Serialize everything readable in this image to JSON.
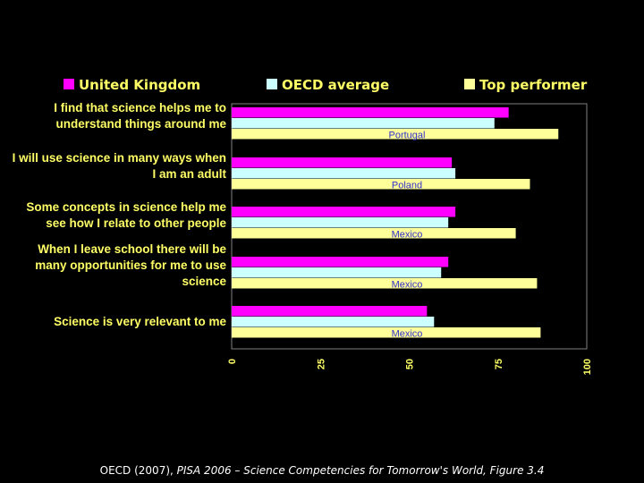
{
  "citation": {
    "prefix": "OECD (2007), ",
    "italic": "PISA 2006 – Science Competencies for Tomorrow's World, Figure 3.4"
  },
  "chart_data": {
    "type": "bar",
    "orientation": "horizontal",
    "categories": [
      [
        "I find that science helps me to",
        "understand things around me"
      ],
      [
        "I will use science in many ways when",
        "I am an adult"
      ],
      [
        "Some concepts in science help me",
        "see how I relate to other people"
      ],
      [
        "When I leave school there will be",
        "many opportunities for me to use",
        "science"
      ],
      [
        "Science is very relevant to me"
      ]
    ],
    "series": [
      {
        "name": "United Kingdom",
        "color": "#ff00ff",
        "values": [
          78,
          62,
          63,
          61,
          55
        ]
      },
      {
        "name": "OECD average",
        "color": "#ccffff",
        "values": [
          74,
          63,
          61,
          59,
          57
        ]
      },
      {
        "name": "Top performer",
        "color": "#ffff99",
        "values": [
          92,
          84,
          80,
          86,
          87
        ]
      }
    ],
    "top_performer_labels": [
      "Portugal",
      "Poland",
      "Mexico",
      "Mexico",
      "Mexico"
    ],
    "xlim": [
      0,
      100
    ],
    "xticks": [
      0,
      25,
      50,
      75,
      100
    ],
    "legend_position": "top",
    "grid": false,
    "plot_area_color": "#000000",
    "text_color": "#ffff66",
    "top_label_color": "#3333cc"
  }
}
